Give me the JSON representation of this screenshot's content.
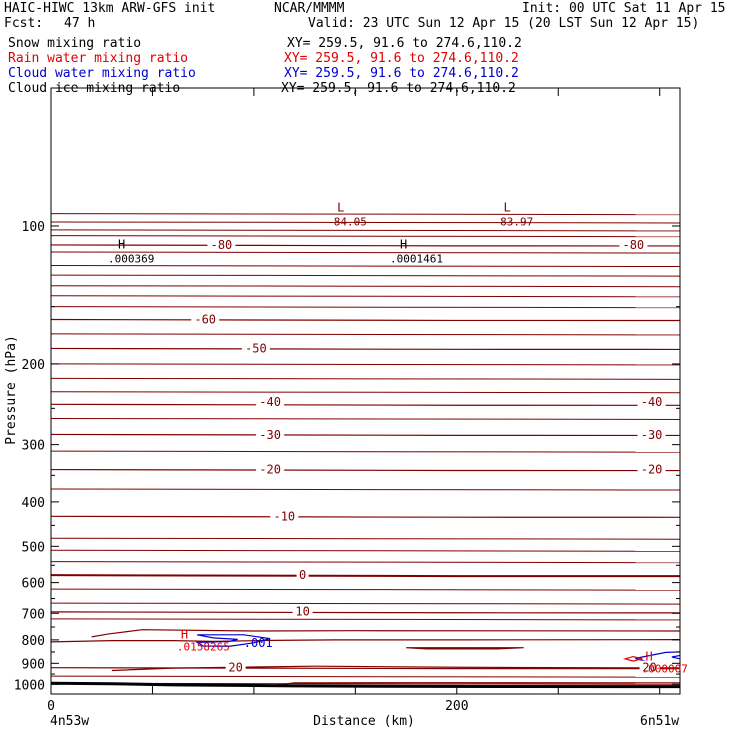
{
  "header": {
    "model": "HAIC-HIWC 13km ARW-GFS init",
    "org": "NCAR/MMMM",
    "init": "Init: 00 UTC Sat 11 Apr 15",
    "fcst_label": "Fcst:",
    "fcst_value": "47 h",
    "valid": "Valid: 23 UTC Sun 12 Apr 15 (20 LST Sun 12 Apr 15)"
  },
  "fields": [
    {
      "name": "Snow mixing ratio",
      "xy": "XY= 259.5, 91.6 to 274.6,110.2",
      "color": "#000000"
    },
    {
      "name": "Rain water mixing ratio",
      "xy": "XY= 259.5, 91.6 to 274.6,110.2",
      "color": "#e00000"
    },
    {
      "name": "Cloud water mixing ratio",
      "xy": "XY= 259.5, 91.6 to 274.6,110.2",
      "color": "#0000cc"
    },
    {
      "name": "Cloud ice mixing ratio",
      "xy": "XY= 259.5, 91.6 to 274.6,110.2",
      "color": "#000000"
    }
  ],
  "colors": {
    "temperature": "#800000",
    "rain": "#e00000",
    "cloud": "#0000cc",
    "axis": "#000000"
  },
  "chart_data": {
    "type": "contour",
    "xlabel": "Distance (km)",
    "ylabel": "Pressure (hPa)",
    "xlim": [
      0,
      310
    ],
    "ylim": [
      1050,
      50
    ],
    "y_scale": "log",
    "x_ticks": [
      0,
      200
    ],
    "y_ticks": [
      100,
      200,
      300,
      400,
      500,
      600,
      700,
      800,
      900,
      1000
    ],
    "x_end_labels": [
      "4n53w",
      "6n51w"
    ],
    "temperature_contours": [
      {
        "label": "-80",
        "p": 110
      },
      {
        "label": "-60",
        "p": 160
      },
      {
        "label": "-50",
        "p": 185
      },
      {
        "label": "-40",
        "p": 245
      },
      {
        "label": "-30",
        "p": 285
      },
      {
        "label": "-20",
        "p": 340
      },
      {
        "label": "-10",
        "p": 430
      },
      {
        "label": "0",
        "p": 578
      },
      {
        "label": "10",
        "p": 695
      },
      {
        "label": "20",
        "p": 920
      }
    ],
    "temperature_labels": [
      {
        "text": "-80",
        "x": 84,
        "p": 110
      },
      {
        "text": "-80",
        "x": 287,
        "p": 110
      },
      {
        "text": "-60",
        "x": 76,
        "p": 160
      },
      {
        "text": "-50",
        "x": 101,
        "p": 185
      },
      {
        "text": "-40",
        "x": 108,
        "p": 242
      },
      {
        "text": "-40",
        "x": 296,
        "p": 242
      },
      {
        "text": "-30",
        "x": 108,
        "p": 286
      },
      {
        "text": "-30",
        "x": 296,
        "p": 286
      },
      {
        "text": "-20",
        "x": 108,
        "p": 340
      },
      {
        "text": "-20",
        "x": 296,
        "p": 340
      },
      {
        "text": "-10",
        "x": 115,
        "p": 430
      },
      {
        "text": "0",
        "x": 124,
        "p": 578
      },
      {
        "text": "10",
        "x": 124,
        "p": 694
      },
      {
        "text": "20",
        "x": 91,
        "p": 920
      },
      {
        "text": "20",
        "x": 295,
        "p": 920
      }
    ],
    "extrema": [
      {
        "kind": "L",
        "value": "-84.05",
        "x": 141,
        "p": 93
      },
      {
        "kind": "L",
        "value": "-83.97",
        "x": 223,
        "p": 93
      },
      {
        "kind": "H",
        "value": ".000369",
        "x": 33,
        "p": 112
      },
      {
        "kind": "H",
        "value": ".0001461",
        "x": 172,
        "p": 112
      }
    ],
    "rain_maxima": [
      {
        "kind": "H",
        "value": ".0158265",
        "x": 64,
        "p": 795
      },
      {
        "kind": "H",
        "value": ".000007",
        "x": 293,
        "p": 888
      }
    ],
    "cloud_labels": [
      {
        "text": ".001",
        "x": 95,
        "p": 830
      }
    ]
  }
}
